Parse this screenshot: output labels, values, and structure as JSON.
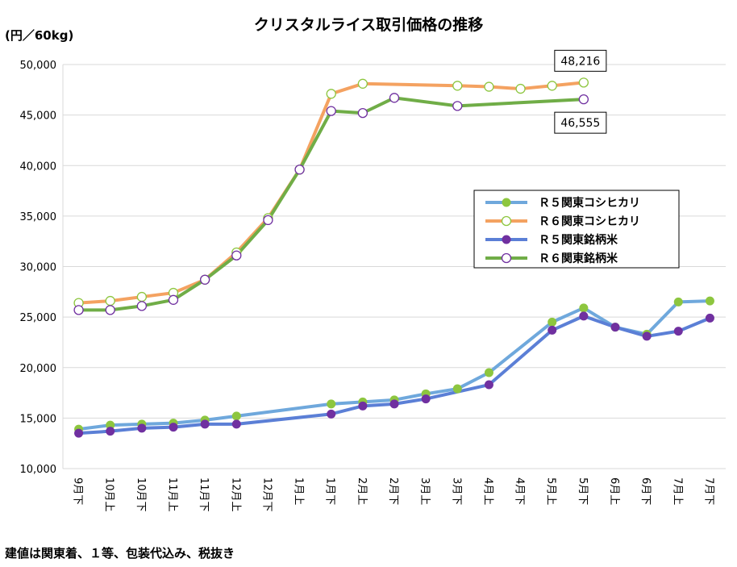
{
  "chart_data": {
    "type": "line",
    "title": "クリスタルライス取引価格の推移",
    "ylabel": "(円／60kg)",
    "ylim": [
      10000,
      50000
    ],
    "yticks": [
      10000,
      15000,
      20000,
      25000,
      30000,
      35000,
      40000,
      45000,
      50000
    ],
    "ytick_labels": [
      "10,000",
      "15,000",
      "20,000",
      "25,000",
      "30,000",
      "35,000",
      "40,000",
      "45,000",
      "50,000"
    ],
    "grid": true,
    "legend_position": "right",
    "categories": [
      "9月下",
      "10月上",
      "10月下",
      "11月上",
      "11月下",
      "12月上",
      "12月下",
      "1月上",
      "1月下",
      "2月上",
      "2月下",
      "3月上",
      "3月下",
      "4月上",
      "4月下",
      "5月上",
      "5月下",
      "6月上",
      "6月下",
      "7月上",
      "7月下"
    ],
    "series": [
      {
        "name": "Ｒ５関東コシヒカリ",
        "color": "#6FA8DC",
        "marker": "#8DC63F",
        "marker_style": "filled",
        "values": [
          13900,
          14300,
          14400,
          14500,
          14800,
          15200,
          null,
          null,
          16400,
          16600,
          16800,
          17400,
          17900,
          19500,
          null,
          24500,
          25900,
          24000,
          23300,
          26500,
          26600
        ]
      },
      {
        "name": "Ｒ６関東コシヒカリ",
        "color": "#F4A261",
        "marker": "#8DC63F",
        "marker_style": "hollow",
        "values": [
          26400,
          26600,
          27000,
          27400,
          28700,
          31400,
          34800,
          39600,
          47100,
          48100,
          null,
          null,
          47900,
          47800,
          47600,
          47900,
          48216,
          null,
          null,
          null,
          null
        ]
      },
      {
        "name": "Ｒ５関東銘柄米",
        "color": "#5B7FD6",
        "marker": "#7030A0",
        "marker_style": "filled",
        "values": [
          13500,
          13700,
          14000,
          14100,
          14400,
          14400,
          null,
          null,
          15400,
          16200,
          16400,
          16900,
          null,
          18300,
          null,
          23700,
          25100,
          24000,
          23100,
          23600,
          24900
        ]
      },
      {
        "name": "Ｒ６関東銘柄米",
        "color": "#70AD47",
        "marker": "#7030A0",
        "marker_style": "hollow",
        "values": [
          25700,
          25700,
          26100,
          26700,
          28700,
          31100,
          34600,
          39600,
          45400,
          45200,
          46700,
          null,
          45900,
          null,
          null,
          null,
          46555,
          null,
          null,
          null,
          null
        ]
      }
    ],
    "annotations": [
      {
        "text": "48,216",
        "series": "Ｒ６関東コシヒカリ",
        "category": "5月下"
      },
      {
        "text": "46,555",
        "series": "Ｒ６関東銘柄米",
        "category": "5月下"
      }
    ],
    "footnote": "建値は関東着、１等、包装代込み、税抜き"
  }
}
